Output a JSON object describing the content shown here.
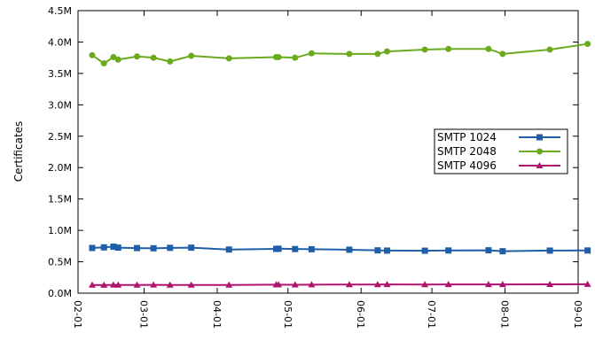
{
  "chart_data": {
    "type": "line",
    "title": "",
    "xlabel": "",
    "ylabel": "Certificates",
    "x_ticks": [
      "02-01",
      "03-01",
      "04-01",
      "05-01",
      "06-01",
      "07-01",
      "08-01",
      "09-01"
    ],
    "y_ticks": [
      "0.0M",
      "0.5M",
      "1.0M",
      "1.5M",
      "2.0M",
      "2.5M",
      "3.0M",
      "3.5M",
      "4.0M",
      "4.5M"
    ],
    "xlim": [
      "02-01",
      "09-01"
    ],
    "ylim": [
      0,
      4500000
    ],
    "x": [
      "02-07",
      "02-12",
      "02-16",
      "02-18",
      "02-26",
      "03-05",
      "03-12",
      "03-21",
      "04-06",
      "04-26",
      "04-27",
      "05-04",
      "05-11",
      "05-27",
      "06-08",
      "06-12",
      "06-28",
      "07-08",
      "07-25",
      "07-31",
      "08-20",
      "09-05"
    ],
    "series": [
      {
        "name": "SMTP 1024",
        "color": "#1f5fa8",
        "marker": "square",
        "values": [
          720000,
          730000,
          740000,
          725000,
          718000,
          715000,
          722000,
          725000,
          695000,
          705000,
          708000,
          703000,
          700000,
          692000,
          682000,
          678000,
          676000,
          680000,
          683000,
          668000,
          678000,
          680000
        ]
      },
      {
        "name": "SMTP 2048",
        "color": "#6aaa1e",
        "marker": "circle",
        "values": [
          3790000,
          3660000,
          3760000,
          3720000,
          3770000,
          3750000,
          3690000,
          3780000,
          3740000,
          3760000,
          3760000,
          3750000,
          3820000,
          3810000,
          3810000,
          3850000,
          3880000,
          3890000,
          3890000,
          3810000,
          3880000,
          3970000
        ]
      },
      {
        "name": "SMTP 4096",
        "color": "#b0136e",
        "marker": "triangle",
        "values": [
          130000,
          128000,
          132000,
          130000,
          131000,
          132000,
          130000,
          130000,
          130000,
          135000,
          135000,
          134000,
          136000,
          137000,
          138000,
          139000,
          138000,
          140000,
          140000,
          139000,
          141000,
          143000
        ]
      }
    ],
    "grid": false,
    "legend_position": "middle-right"
  }
}
